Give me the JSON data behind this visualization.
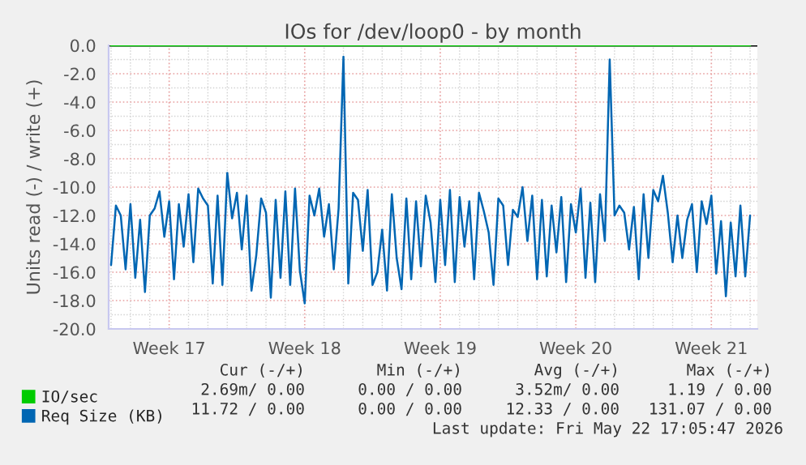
{
  "chart_data": {
    "type": "line",
    "title": "IOs for /dev/loop0 - by month",
    "ylabel": "Units read (-) / write (+)",
    "categories": [
      null,
      null,
      null,
      null,
      null,
      null,
      null,
      null,
      null,
      null,
      null,
      null,
      "Week 17",
      null,
      null,
      null,
      null,
      null,
      null,
      null,
      null,
      null,
      null,
      null,
      null,
      null,
      null,
      null,
      null,
      null,
      null,
      null,
      null,
      null,
      null,
      null,
      null,
      null,
      null,
      null,
      "Week 18",
      null,
      null,
      null,
      null,
      null,
      null,
      null,
      null,
      null,
      null,
      null,
      null,
      null,
      null,
      null,
      null,
      null,
      null,
      null,
      null,
      null,
      null,
      null,
      null,
      null,
      null,
      null,
      "Week 19",
      null,
      null,
      null,
      null,
      null,
      null,
      null,
      null,
      null,
      null,
      null,
      null,
      null,
      null,
      null,
      null,
      null,
      null,
      null,
      null,
      null,
      null,
      null,
      null,
      null,
      null,
      null,
      "Week 20",
      null,
      null,
      null,
      null,
      null,
      null,
      null,
      null,
      null,
      null,
      null,
      null,
      null,
      null,
      null,
      null,
      null,
      null,
      null,
      null,
      null,
      null,
      null,
      null,
      null,
      null,
      null,
      "Week 21",
      null,
      null,
      null,
      null,
      null,
      null,
      null,
      null
    ],
    "ylim": [
      -20,
      0
    ],
    "yticks": [
      {
        "value": -20,
        "label": "-20.0"
      },
      {
        "value": -18,
        "label": "-18.0"
      },
      {
        "value": -16,
        "label": "-16.0"
      },
      {
        "value": -14,
        "label": "-14.0"
      },
      {
        "value": -12,
        "label": "-12.0"
      },
      {
        "value": -10,
        "label": "-10.0"
      },
      {
        "value": -8,
        "label": "-8.0"
      },
      {
        "value": -6,
        "label": "-6.0"
      },
      {
        "value": -4,
        "label": "-4.0"
      },
      {
        "value": -2,
        "label": "-2.0"
      },
      {
        "value": 0,
        "label": "0.0"
      }
    ],
    "grid": true,
    "legend": "bottom left",
    "ref_lines": [
      {
        "axis": "y",
        "value": 0,
        "color": "#000000"
      }
    ],
    "series": [
      {
        "name": "IO/sec",
        "color": "#00cc00",
        "values": [
          0,
          0,
          0,
          0,
          0,
          0,
          0,
          0,
          0,
          0,
          0,
          0,
          0,
          0,
          0,
          0,
          0,
          0,
          0,
          0,
          0,
          0,
          0,
          0,
          0,
          0,
          0,
          0,
          0,
          0,
          0,
          0,
          0,
          0,
          0,
          0,
          0,
          0,
          0,
          0,
          0,
          0,
          0,
          0,
          0,
          0,
          0,
          0,
          0,
          0,
          0,
          0,
          0,
          0,
          0,
          0,
          0,
          0,
          0,
          0,
          0,
          0,
          0,
          0,
          0,
          0,
          0,
          0,
          0,
          0,
          0,
          0,
          0,
          0,
          0,
          0,
          0,
          0,
          0,
          0,
          0,
          0,
          0,
          0,
          0,
          0,
          0,
          0,
          0,
          0,
          0,
          0,
          0,
          0,
          0,
          0,
          0,
          0,
          0,
          0,
          0,
          0,
          0,
          0,
          0,
          0,
          0,
          0,
          0,
          0,
          0,
          0,
          0,
          0,
          0,
          0,
          0,
          0,
          0,
          0,
          0,
          0,
          0,
          0,
          0,
          0,
          0,
          0,
          0,
          0,
          0,
          0,
          0
        ]
      },
      {
        "name": "Req Size (KB)",
        "color": "#0066b3",
        "values": [
          -15.5,
          -11.3,
          -12.0,
          -15.8,
          -11.2,
          -16.4,
          -12.3,
          -17.4,
          -12.0,
          -11.5,
          -10.3,
          -13.5,
          -11.0,
          -16.5,
          -11.2,
          -14.2,
          -10.5,
          -15.3,
          -10.1,
          -10.8,
          -11.3,
          -16.8,
          -10.6,
          -16.9,
          -9.0,
          -12.2,
          -10.4,
          -14.4,
          -10.6,
          -17.3,
          -14.8,
          -10.8,
          -11.8,
          -17.8,
          -10.9,
          -16.4,
          -10.3,
          -16.9,
          -10.1,
          -15.9,
          -18.2,
          -10.6,
          -12.0,
          -10.1,
          -13.5,
          -11.2,
          -15.8,
          -11.5,
          -0.8,
          -16.8,
          -10.4,
          -10.9,
          -14.5,
          -10.2,
          -16.9,
          -16.0,
          -13.0,
          -17.3,
          -10.5,
          -15.0,
          -17.2,
          -10.8,
          -16.5,
          -11.0,
          -15.6,
          -10.6,
          -12.5,
          -16.7,
          -10.9,
          -15.5,
          -10.2,
          -16.7,
          -10.7,
          -14.2,
          -11.0,
          -16.5,
          -10.4,
          -11.7,
          -13.2,
          -16.9,
          -10.8,
          -11.3,
          -15.5,
          -11.6,
          -12.1,
          -10.0,
          -13.8,
          -10.6,
          -16.5,
          -10.9,
          -16.3,
          -11.3,
          -14.6,
          -10.7,
          -16.7,
          -11.2,
          -13.2,
          -10.1,
          -16.4,
          -11.1,
          -16.7,
          -10.5,
          -13.8,
          -1.0,
          -12.0,
          -11.3,
          -11.8,
          -14.4,
          -11.4,
          -16.5,
          -10.5,
          -15.0,
          -10.2,
          -11.0,
          -9.2,
          -11.8,
          -15.3,
          -12.0,
          -15.0,
          -12.3,
          -11.2,
          -16.0,
          -11.0,
          -12.6,
          -10.6,
          -16.1,
          -12.4,
          -17.7,
          -12.5,
          -16.3,
          -11.3,
          -16.3,
          -12.0
        ]
      }
    ],
    "annotations": [
      "Cur (-/+)",
      "Min (-/+)",
      "Avg (-/+)",
      "Max (-/+)",
      "2.69m/ 0.00",
      "0.00 / 0.00",
      "3.52m/ 0.00",
      "1.19 / 0.00",
      "11.72 / 0.00",
      "0.00 / 0.00",
      "12.33 / 0.00",
      "131.07 / 0.00",
      "Last update: Fri May 22 17:05:47 2026"
    ]
  }
}
